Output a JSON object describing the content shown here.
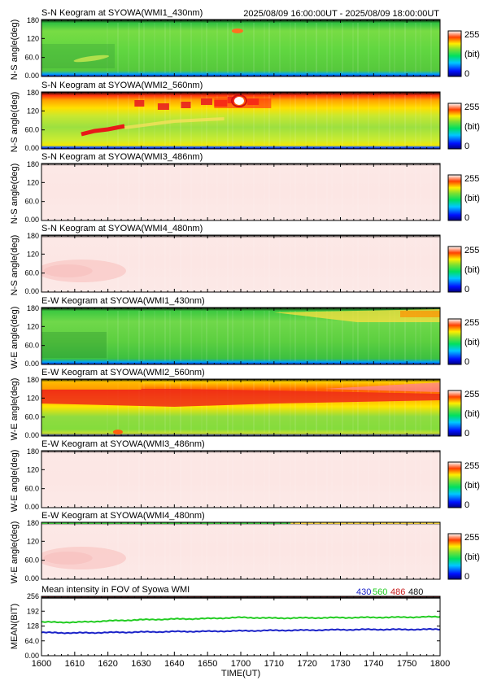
{
  "header": {
    "time_range": "2025/08/09 16:00:00UT - 2025/08/09 18:00:00UT"
  },
  "panels": [
    {
      "title": "S-N Keogram at SYOWA(WMI1_430nm)",
      "ylabel": "N-S angle(deg)",
      "pattern": "green430",
      "features": "faint diagonal blob 1610-1625 near 40-60deg; small orange/red spot near 1697 at ~170deg"
    },
    {
      "title": "S-N Keogram at SYOWA(WMI2_560nm)",
      "ylabel": "N-S angle(deg)",
      "pattern": "red560ns",
      "features": "orange band at top; red patches 1630-1700 near 150-170deg; saturated spot at 1697 ~170deg; red diagonal 1610-1625 near 60-90deg"
    },
    {
      "title": "S-N Keogram at SYOWA(WMI3_486nm)",
      "ylabel": "N-S angle(deg)",
      "pattern": "pink"
    },
    {
      "title": "S-N Keogram at SYOWA(WMI4_480nm)",
      "ylabel": "N-S angle(deg)",
      "pattern": "pinkblob",
      "features": "slightly darker pink blob 1600-1630 near 40-80deg"
    },
    {
      "title": "E-W Keogram at SYOWA(WMI1_430nm)",
      "ylabel": "W-E angle(deg)",
      "pattern": "green430ew",
      "features": "green, yellowing toward top-right after 1720"
    },
    {
      "title": "E-W Keogram at SYOWA(WMI2_560nm)",
      "ylabel": "W-E angle(deg)",
      "pattern": "red560ew",
      "features": "red band near 120-170deg widening, red/pink streak to 1800"
    },
    {
      "title": "E-W Keogram at SYOWA(WMI3_486nm)",
      "ylabel": "W-E angle(deg)",
      "pattern": "pink"
    },
    {
      "title": "E-W Keogram at SYOWA(WMI4_480nm)",
      "ylabel": "W-E angle(deg)",
      "pattern": "pinkblob",
      "features": "green/yellow thin strip at top edge; darker pink blob 1600-1630 near 40-90deg"
    }
  ],
  "keogram_axes": {
    "yticks": [
      "180",
      "120",
      "60.0",
      "0.00"
    ],
    "ytick_values": [
      180,
      120,
      60,
      0
    ],
    "ylim": [
      0,
      180
    ],
    "colorbar": {
      "max_label": "255",
      "unit_label": "(bit)",
      "min_label": "0"
    }
  },
  "chart_data": {
    "type": "line",
    "title": "Mean intensity in FOV of Syowa WMI",
    "xlabel": "TIME(UT)",
    "ylabel": "MEAN(BIT)",
    "ylim": [
      0,
      256
    ],
    "yticks": [
      "256",
      "192",
      "128",
      "64.0",
      "0.00"
    ],
    "ytick_values": [
      256,
      192,
      128,
      64,
      0
    ],
    "x_ticks": [
      "1600",
      "1610",
      "1620",
      "1630",
      "1640",
      "1650",
      "1700",
      "1710",
      "1720",
      "1730",
      "1740",
      "1750",
      "1800"
    ],
    "x_minutes": [
      0,
      10,
      20,
      30,
      40,
      50,
      60,
      70,
      80,
      90,
      100,
      110,
      120
    ],
    "legend_position": "top-right",
    "series": [
      {
        "name": "430",
        "color": "#1a22c8",
        "values": [
          100,
          98,
          100,
          102,
          104,
          105,
          107,
          109,
          110,
          112,
          113,
          113,
          114
        ]
      },
      {
        "name": "560",
        "color": "#22cc22",
        "values": [
          145,
          144,
          150,
          155,
          158,
          160,
          165,
          162,
          163,
          164,
          165,
          166,
          168
        ]
      },
      {
        "name": "486",
        "color": "#c81e1e",
        "values": [
          256,
          256,
          256,
          256,
          256,
          256,
          256,
          256,
          256,
          256,
          256,
          256,
          256
        ]
      },
      {
        "name": "480",
        "color": "#111111",
        "values": [
          256,
          256,
          256,
          256,
          256,
          256,
          256,
          256,
          256,
          256,
          256,
          256,
          256
        ]
      }
    ]
  }
}
